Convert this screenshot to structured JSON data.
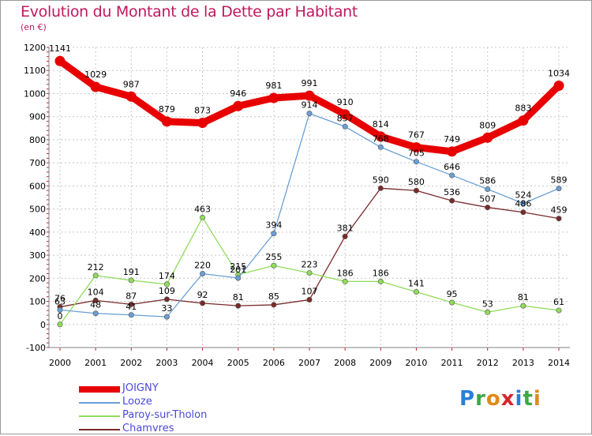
{
  "header": {
    "title": "Evolution du Montant de la Dette par Habitant",
    "unit": "(en €)"
  },
  "logo": {
    "text": "Proxiti",
    "letters": [
      {
        "ch": "P",
        "color": "#2a7fd4"
      },
      {
        "ch": "r",
        "color": "#3fa64a"
      },
      {
        "ch": "o",
        "color": "#e08a1a"
      },
      {
        "ch": "x",
        "color": "#d4262a"
      },
      {
        "ch": "i",
        "color": "#2a7fd4"
      },
      {
        "ch": "t",
        "color": "#3fa64a"
      },
      {
        "ch": "i",
        "color": "#e08a1a"
      }
    ]
  },
  "chart_data": {
    "type": "line",
    "title": "Evolution du Montant de la Dette par Habitant",
    "ylabel": "(en €)",
    "x": [
      "2000",
      "2001",
      "2002",
      "2003",
      "2004",
      "2005",
      "2006",
      "2007",
      "2008",
      "2009",
      "2010",
      "2011",
      "2012",
      "2013",
      "2014"
    ],
    "ylim": [
      -100,
      1200
    ],
    "yticks": [
      "-100",
      "0",
      "100",
      "200",
      "300",
      "400",
      "500",
      "600",
      "700",
      "800",
      "900",
      "1000",
      "1100",
      "1200"
    ],
    "grid": true,
    "legend_position": "bottom-left",
    "series": [
      {
        "name": "JOIGNY",
        "color": "#e80000",
        "values": [
          1141,
          1029,
          987,
          879,
          873,
          946,
          981,
          991,
          910,
          814,
          767,
          749,
          809,
          883,
          1034
        ],
        "labels": [
          "1141",
          "1029",
          "987",
          "879",
          "873",
          "946",
          "981",
          "991",
          "910",
          "814",
          "767",
          "749",
          "809",
          "883",
          "1034"
        ]
      },
      {
        "name": "Looze",
        "color": "#6a9fd6",
        "values": [
          63,
          48,
          41,
          33,
          220,
          201,
          394,
          914,
          857,
          768,
          705,
          646,
          586,
          524,
          589
        ],
        "labels": [
          "63",
          "48",
          "41",
          "33",
          "220",
          "201",
          "394",
          "914",
          "857",
          "768",
          "705",
          "646",
          "586",
          "524",
          "589"
        ]
      },
      {
        "name": "Paroy-sur-Tholon",
        "color": "#8fdc5a",
        "values": [
          0,
          212,
          191,
          174,
          463,
          215,
          255,
          223,
          186,
          186,
          141,
          95,
          53,
          81,
          61
        ],
        "labels": [
          "0",
          "212",
          "191",
          "174",
          "463",
          "215",
          "255",
          "223",
          "186",
          "186",
          "141",
          "95",
          "53",
          "81",
          "61"
        ]
      },
      {
        "name": "Chamvres",
        "color": "#7a2a2a",
        "values": [
          76,
          104,
          87,
          109,
          92,
          81,
          85,
          107,
          381,
          590,
          580,
          536,
          507,
          486,
          459
        ],
        "labels": [
          "76",
          "104",
          "87",
          "109",
          "92",
          "81",
          "85",
          "107",
          "381",
          "590",
          "580",
          "536",
          "507",
          "486",
          "459"
        ]
      }
    ]
  }
}
